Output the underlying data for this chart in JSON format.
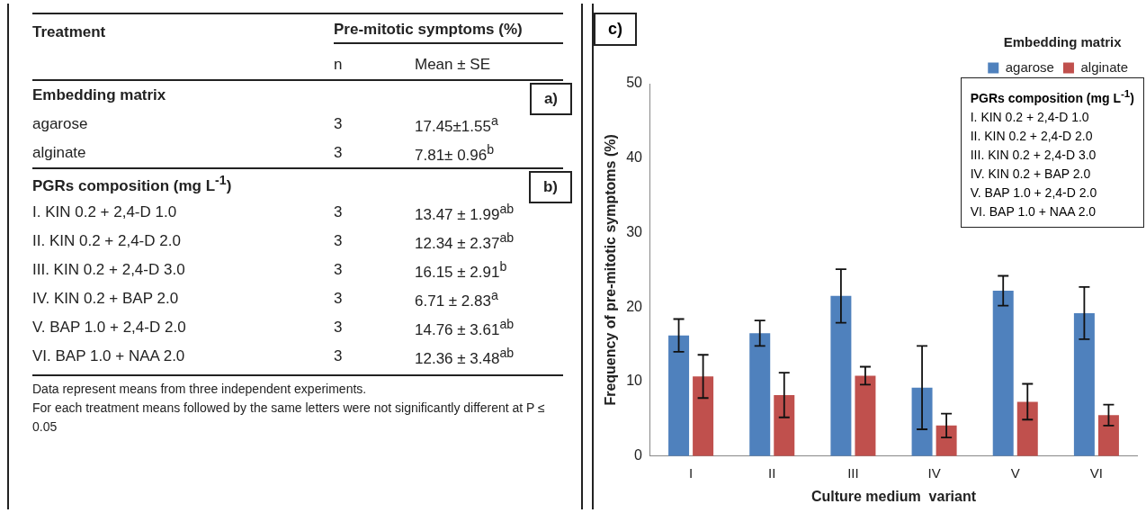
{
  "chart_data": [
    {
      "type": "other",
      "annotations": [
        "Treatment\t\tPre-mitotic symptoms (%)",
        "\tn\tMean ± SE",
        "Embedding matrix\t\t\ta)",
        "agarose\t3\t17.45±1.55$^{a}$",
        "alginate\t3\t7.81± 0.96$^{b}$",
        "PGRs composition (mg L$^{-1}$)\t\t\tb)",
        "I.   KIN 0.2 + 2,4-D 1.0\t3\t13.47 ± 1.99$^{ab}$",
        "II.  KIN 0.2 + 2,4-D 2.0\t3\t12.34 ± 2.37$^{ab}$",
        "III. KIN 0.2 + 2,4-D 3.0\t3\t16.15 ± 2.91$^{b}$",
        "IV. KIN 0.2 + BAP 2.0\t3\t6.71 ± 2.83$^{a}$",
        "V.  BAP 1.0 + 2,4-D 2.0\t3\t14.76 ± 3.61$^{ab}$",
        "VI. BAP 1.0 + NAA 2.0\t3\t12.36 ± 3.48$^{ab}$",
        "Data represent means from three independent experiments.",
        "For each treatment means followed by the same letters were not significantly different at P ≤ 0.05"
      ]
    },
    {
      "type": "bar",
      "legend_title": "Embedding matrix",
      "xlabel": "Culture medium  variant",
      "ylabel": "Frequency of pre-mitotic symptoms (%)",
      "categories": [
        "I",
        "II",
        "III",
        "IV",
        "V",
        "VI"
      ],
      "series": [
        {
          "name": "agarose",
          "color": "#4f81bd",
          "values": [
            16.2,
            16.5,
            21.5,
            9.2,
            22.2,
            19.2
          ],
          "errors": [
            2.2,
            1.7,
            3.6,
            5.6,
            2.0,
            3.5
          ]
        },
        {
          "name": "alginate",
          "color": "#c0504d",
          "values": [
            10.7,
            8.2,
            10.8,
            4.1,
            7.3,
            5.5
          ],
          "errors": [
            2.9,
            3.0,
            1.2,
            1.6,
            2.4,
            1.4
          ]
        }
      ],
      "ylim": [
        0,
        50
      ],
      "yticks": [
        0,
        10,
        20,
        30,
        40,
        50
      ],
      "grid": false,
      "legend": "top right",
      "annotations": [
        "c)",
        "PGRs composition (mg L$^{-1}$)",
        "I. KIN 0.2 + 2,4-D 1.0",
        "II. KIN 0.2 + 2,4-D 2.0",
        "III. KIN 0.2 + 2,4-D 3.0",
        "IV. KIN 0.2 + BAP 2.0",
        "V. BAP 1.0 + 2,4-D 2.0",
        "VI. BAP 1.0 + NAA 2.0"
      ]
    }
  ]
}
